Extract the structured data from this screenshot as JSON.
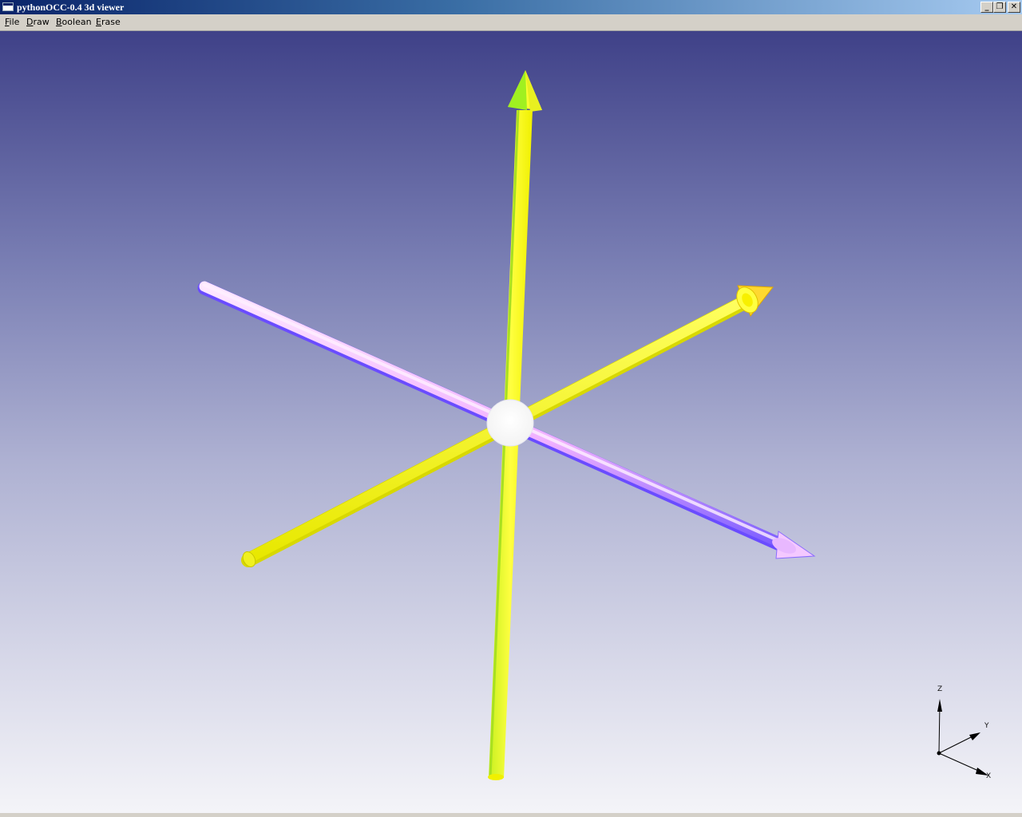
{
  "window": {
    "title": "pythonOCC-0.4 3d viewer",
    "buttons": {
      "minimize": "_",
      "restore": "❐",
      "close": "✕"
    }
  },
  "menu": {
    "items": [
      {
        "label": "File",
        "mnemonic": "F",
        "rest": "ile"
      },
      {
        "label": "Draw",
        "mnemonic": "D",
        "rest": "raw"
      },
      {
        "label": "Boolean",
        "mnemonic": "B",
        "rest": "oolean"
      },
      {
        "label": "Erase",
        "mnemonic": "E",
        "rest": "rase"
      }
    ]
  },
  "viewer": {
    "colors": {
      "background_top": "#3f4188",
      "background_bottom": "#f4f4f8",
      "axis_vertical": "#f5f500",
      "axis_yellow_diagonal": "#ffff33",
      "axis_pink_diagonal": "#f0c8ff",
      "center_sphere": "#ffffff"
    },
    "triedron": {
      "z_label": "Z",
      "y_label": "Y",
      "x_label": "X"
    }
  }
}
